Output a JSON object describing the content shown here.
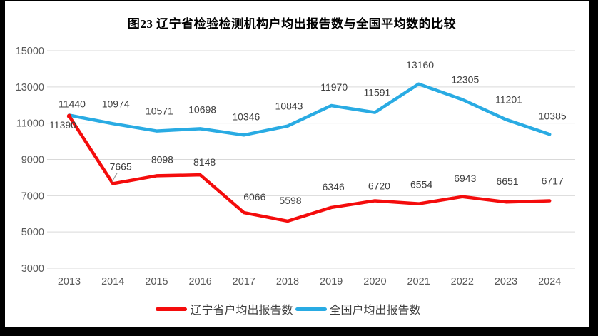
{
  "title": "图23 辽宁省检验检测机构户均出报告数与全国平均数的比较",
  "frame_color": "#000000",
  "background_color": "#ffffff",
  "chart_data": {
    "type": "line",
    "title": "图23 辽宁省检验检测机构户均出报告数与全国平均数的比较",
    "categories": [
      "2013",
      "2014",
      "2015",
      "2016",
      "2017",
      "2018",
      "2019",
      "2020",
      "2021",
      "2022",
      "2023",
      "2024"
    ],
    "series": [
      {
        "name": "辽宁省户均出报告数",
        "color": "#f40c0c",
        "values": [
          11390,
          7665,
          8098,
          8148,
          6066,
          5598,
          6346,
          6720,
          6554,
          6943,
          6651,
          6717
        ],
        "label_offsets": [
          [
            -9,
            12
          ],
          [
            11,
            -24
          ],
          [
            8,
            -23
          ],
          [
            6,
            -18
          ],
          [
            15,
            -22
          ],
          [
            4,
            -29
          ],
          [
            3,
            -29
          ],
          [
            6,
            -21
          ],
          [
            4,
            -27
          ],
          [
            4,
            -26
          ],
          [
            2,
            -29
          ],
          [
            4,
            -28
          ]
        ],
        "leader_at_index": 1,
        "start_marker": true
      },
      {
        "name": "全国户均出报告数",
        "color": "#29abe3",
        "values": [
          11440,
          10974,
          10571,
          10698,
          10346,
          10843,
          11970,
          11591,
          13160,
          12305,
          11201,
          10385
        ],
        "label_offsets": [
          [
            4,
            -16
          ],
          [
            4,
            -28
          ],
          [
            4,
            -28
          ],
          [
            3,
            -27
          ],
          [
            3,
            -26
          ],
          [
            2,
            -28
          ],
          [
            4,
            -26
          ],
          [
            3,
            -28
          ],
          [
            2,
            -27
          ],
          [
            4,
            -28
          ],
          [
            4,
            -28
          ],
          [
            4,
            -26
          ]
        ]
      }
    ],
    "ylim": [
      3000,
      15000
    ],
    "ytick_interval": 2000,
    "yticks": [
      "3000",
      "5000",
      "7000",
      "9000",
      "11000",
      "13000",
      "15000"
    ],
    "grid": true,
    "legend_position": "bottom",
    "gridline_color": "#d9d9d9",
    "axis_text_color": "#595959",
    "label_text_color": "#3f3f3f",
    "leader_color": "#9e9e9e"
  }
}
